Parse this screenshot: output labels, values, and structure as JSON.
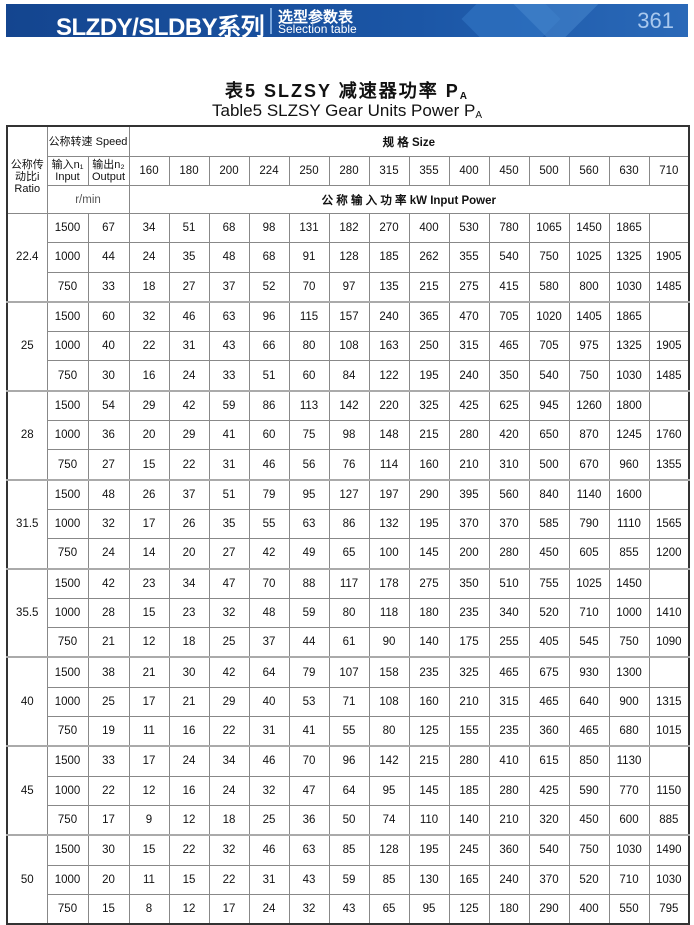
{
  "banner": {
    "series": "SLZDY/SLDBY系列",
    "selection_cn": "选型参数表",
    "selection_en": "Selection table",
    "page_number": "361",
    "color": "#1b56a6"
  },
  "title": {
    "cn": "表5  SLZSY 减速器功率 P",
    "cn_sub": "A",
    "en": "Table5 SLZSY Gear Units Power P",
    "en_sub": "A"
  },
  "table": {
    "ratio_header": "公称传动比i Ratio",
    "speed_header": "公称转速 Speed",
    "input_header": "输入n₁ Input",
    "output_header": "输出n₂ Output",
    "size_header": "规  格 Size",
    "speed_unit": "r/min",
    "power_header": "公 称 输 入 功 率 kW  Input Power",
    "sizes": [
      "160",
      "180",
      "200",
      "224",
      "250",
      "280",
      "315",
      "355",
      "400",
      "450",
      "500",
      "560",
      "630",
      "710"
    ],
    "groups": [
      {
        "ratio": "22.4",
        "rows": [
          {
            "n1": "1500",
            "n2": "67",
            "values": [
              "34",
              "51",
              "68",
              "98",
              "131",
              "182",
              "270",
              "400",
              "530",
              "780",
              "1065",
              "1450",
              "1865",
              ""
            ]
          },
          {
            "n1": "1000",
            "n2": "44",
            "values": [
              "24",
              "35",
              "48",
              "68",
              "91",
              "128",
              "185",
              "262",
              "355",
              "540",
              "750",
              "1025",
              "1325",
              "1905"
            ]
          },
          {
            "n1": "750",
            "n2": "33",
            "values": [
              "18",
              "27",
              "37",
              "52",
              "70",
              "97",
              "135",
              "215",
              "275",
              "415",
              "580",
              "800",
              "1030",
              "1485"
            ]
          }
        ]
      },
      {
        "ratio": "25",
        "rows": [
          {
            "n1": "1500",
            "n2": "60",
            "values": [
              "32",
              "46",
              "63",
              "96",
              "115",
              "157",
              "240",
              "365",
              "470",
              "705",
              "1020",
              "1405",
              "1865",
              ""
            ]
          },
          {
            "n1": "1000",
            "n2": "40",
            "values": [
              "22",
              "31",
              "43",
              "66",
              "80",
              "108",
              "163",
              "250",
              "315",
              "465",
              "705",
              "975",
              "1325",
              "1905"
            ]
          },
          {
            "n1": "750",
            "n2": "30",
            "values": [
              "16",
              "24",
              "33",
              "51",
              "60",
              "84",
              "122",
              "195",
              "240",
              "350",
              "540",
              "750",
              "1030",
              "1485"
            ]
          }
        ]
      },
      {
        "ratio": "28",
        "rows": [
          {
            "n1": "1500",
            "n2": "54",
            "values": [
              "29",
              "42",
              "59",
              "86",
              "113",
              "142",
              "220",
              "325",
              "425",
              "625",
              "945",
              "1260",
              "1800",
              ""
            ]
          },
          {
            "n1": "1000",
            "n2": "36",
            "values": [
              "20",
              "29",
              "41",
              "60",
              "75",
              "98",
              "148",
              "215",
              "280",
              "420",
              "650",
              "870",
              "1245",
              "1760"
            ]
          },
          {
            "n1": "750",
            "n2": "27",
            "values": [
              "15",
              "22",
              "31",
              "46",
              "56",
              "76",
              "114",
              "160",
              "210",
              "310",
              "500",
              "670",
              "960",
              "1355"
            ]
          }
        ]
      },
      {
        "ratio": "31.5",
        "rows": [
          {
            "n1": "1500",
            "n2": "48",
            "values": [
              "26",
              "37",
              "51",
              "79",
              "95",
              "127",
              "197",
              "290",
              "395",
              "560",
              "840",
              "1140",
              "1600",
              ""
            ]
          },
          {
            "n1": "1000",
            "n2": "32",
            "values": [
              "17",
              "26",
              "35",
              "55",
              "63",
              "86",
              "132",
              "195",
              "370",
              "370",
              "585",
              "790",
              "1110",
              "1565"
            ]
          },
          {
            "n1": "750",
            "n2": "24",
            "values": [
              "14",
              "20",
              "27",
              "42",
              "49",
              "65",
              "100",
              "145",
              "200",
              "280",
              "450",
              "605",
              "855",
              "1200"
            ]
          }
        ]
      },
      {
        "ratio": "35.5",
        "rows": [
          {
            "n1": "1500",
            "n2": "42",
            "values": [
              "23",
              "34",
              "47",
              "70",
              "88",
              "117",
              "178",
              "275",
              "350",
              "510",
              "755",
              "1025",
              "1450",
              ""
            ]
          },
          {
            "n1": "1000",
            "n2": "28",
            "values": [
              "15",
              "23",
              "32",
              "48",
              "59",
              "80",
              "118",
              "180",
              "235",
              "340",
              "520",
              "710",
              "1000",
              "1410"
            ]
          },
          {
            "n1": "750",
            "n2": "21",
            "values": [
              "12",
              "18",
              "25",
              "37",
              "44",
              "61",
              "90",
              "140",
              "175",
              "255",
              "405",
              "545",
              "750",
              "1090"
            ]
          }
        ]
      },
      {
        "ratio": "40",
        "rows": [
          {
            "n1": "1500",
            "n2": "38",
            "values": [
              "21",
              "30",
              "42",
              "64",
              "79",
              "107",
              "158",
              "235",
              "325",
              "465",
              "675",
              "930",
              "1300",
              ""
            ]
          },
          {
            "n1": "1000",
            "n2": "25",
            "values": [
              "17",
              "21",
              "29",
              "40",
              "53",
              "71",
              "108",
              "160",
              "210",
              "315",
              "465",
              "640",
              "900",
              "1315"
            ]
          },
          {
            "n1": "750",
            "n2": "19",
            "values": [
              "11",
              "16",
              "22",
              "31",
              "41",
              "55",
              "80",
              "125",
              "155",
              "235",
              "360",
              "465",
              "680",
              "1015"
            ]
          }
        ]
      },
      {
        "ratio": "45",
        "rows": [
          {
            "n1": "1500",
            "n2": "33",
            "values": [
              "17",
              "24",
              "34",
              "46",
              "70",
              "96",
              "142",
              "215",
              "280",
              "410",
              "615",
              "850",
              "1130",
              ""
            ]
          },
          {
            "n1": "1000",
            "n2": "22",
            "values": [
              "12",
              "16",
              "24",
              "32",
              "47",
              "64",
              "95",
              "145",
              "185",
              "280",
              "425",
              "590",
              "770",
              "1150"
            ]
          },
          {
            "n1": "750",
            "n2": "17",
            "values": [
              "9",
              "12",
              "18",
              "25",
              "36",
              "50",
              "74",
              "110",
              "140",
              "210",
              "320",
              "450",
              "600",
              "885"
            ]
          }
        ]
      },
      {
        "ratio": "50",
        "rows": [
          {
            "n1": "1500",
            "n2": "30",
            "values": [
              "15",
              "22",
              "32",
              "46",
              "63",
              "85",
              "128",
              "195",
              "245",
              "360",
              "540",
              "750",
              "1030",
              "1490"
            ]
          },
          {
            "n1": "1000",
            "n2": "20",
            "values": [
              "11",
              "15",
              "22",
              "31",
              "43",
              "59",
              "85",
              "130",
              "165",
              "240",
              "370",
              "520",
              "710",
              "1030"
            ]
          },
          {
            "n1": "750",
            "n2": "15",
            "values": [
              "8",
              "12",
              "17",
              "24",
              "32",
              "43",
              "65",
              "95",
              "125",
              "180",
              "290",
              "400",
              "550",
              "795"
            ]
          }
        ]
      }
    ]
  }
}
